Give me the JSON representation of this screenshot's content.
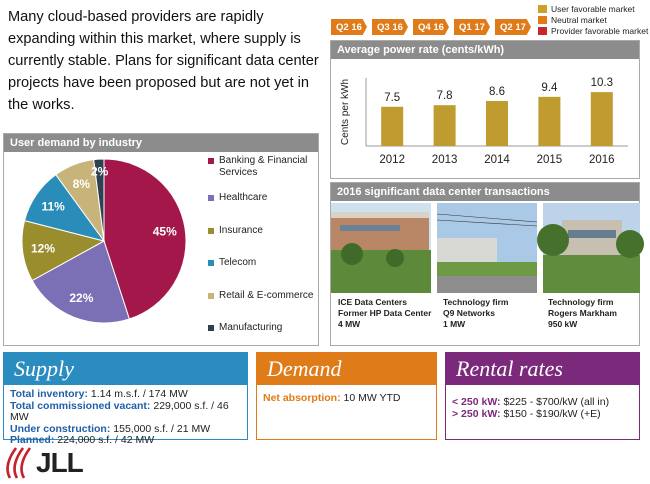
{
  "intro": "Many cloud-based providers are rapidly expanding within this market, where supply is currently stable. Plans for significant data center projects have been proposed but are not yet in the works.",
  "timeline": {
    "quarters": [
      "Q2 16",
      "Q3 16",
      "Q4 16",
      "Q1 17",
      "Q2 17"
    ]
  },
  "market_legend": [
    {
      "label": "User favorable market",
      "color": "#c9a227"
    },
    {
      "label": "Neutral market",
      "color": "#e07b1a"
    },
    {
      "label": "Provider favorable market",
      "color": "#c8282d"
    }
  ],
  "chart_data": [
    {
      "type": "pie",
      "title": "User demand by industry",
      "categories": [
        "Banking & Financial Services",
        "Healthcare",
        "Insurance",
        "Telecom",
        "Retail & E-commerce",
        "Manufacturing"
      ],
      "values": [
        45,
        22,
        12,
        11,
        8,
        2
      ],
      "value_labels": [
        "45%",
        "22%",
        "12%",
        "11%",
        "8%",
        "2%"
      ],
      "colors": [
        "#a3174a",
        "#7b6fb5",
        "#9a8d2e",
        "#2a8cb8",
        "#c8b47a",
        "#2f4050"
      ]
    },
    {
      "type": "bar",
      "title": "Average power rate (cents/kWh)",
      "ylabel": "Cents per kWh",
      "categories": [
        "2012",
        "2013",
        "2014",
        "2015",
        "2016"
      ],
      "values": [
        7.5,
        7.8,
        8.6,
        9.4,
        10.3
      ],
      "color": "#bf9b30",
      "ylim": [
        0,
        13
      ]
    }
  ],
  "transactions": {
    "title": "2016  significant data center transactions",
    "items": [
      {
        "lines": [
          "ICE Data Centers",
          "Former HP Data Center",
          "4 MW"
        ]
      },
      {
        "lines": [
          "Technology firm",
          "Q9 Networks",
          "1 MW"
        ]
      },
      {
        "lines": [
          "Technology firm",
          "Rogers Markham",
          "950 kW"
        ]
      }
    ]
  },
  "supply": {
    "title": "Supply",
    "rows": [
      {
        "label": "Total inventory:",
        "value": "1.14  m.s.f. / 174 MW"
      },
      {
        "label": "Total commissioned vacant:",
        "value": "229,000 s.f. / 46 MW"
      },
      {
        "label": "Under construction:",
        "value": "155,000 s.f. / 21 MW"
      },
      {
        "label": "Planned:",
        "value": "224,000 s.f. / 42 MW"
      }
    ]
  },
  "demand": {
    "title": "Demand",
    "rows": [
      {
        "label": "Net absorption:",
        "value": "10 MW YTD"
      }
    ]
  },
  "rental_rates": {
    "title": "Rental rates",
    "rows": [
      {
        "label": "< 250 kW:",
        "value": "$225 - $700/kW (all in)"
      },
      {
        "label": "> 250 kW:",
        "value": "$150 - $190/kW (+E)"
      }
    ]
  },
  "logo": "JLL"
}
